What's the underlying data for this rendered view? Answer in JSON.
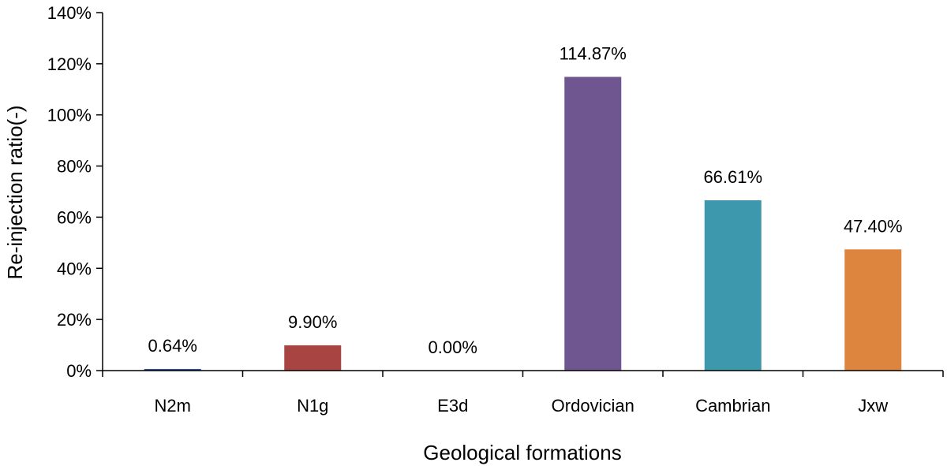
{
  "chart_data": {
    "type": "bar",
    "categories": [
      "N2m",
      "N1g",
      "E3d",
      "Ordovician",
      "Cambrian",
      "Jxw"
    ],
    "values": [
      0.64,
      9.9,
      0.0,
      114.87,
      66.61,
      47.4
    ],
    "data_labels": [
      "0.64%",
      "9.90%",
      "0.00%",
      "114.87%",
      "66.61%",
      "47.40%"
    ],
    "colors": [
      "#2e4e9a",
      "#a84542",
      "#8aa64a",
      "#6f5690",
      "#3d98ad",
      "#dd853f"
    ],
    "xlabel": "Geological formations",
    "ylabel": "Re-injection ratio(-)",
    "ylim": [
      0,
      140
    ],
    "yticks": [
      0,
      20,
      40,
      60,
      80,
      100,
      120,
      140
    ],
    "ytick_labels": [
      "0%",
      "20%",
      "40%",
      "60%",
      "80%",
      "100%",
      "120%",
      "140%"
    ],
    "grid": false,
    "legend": "none"
  }
}
